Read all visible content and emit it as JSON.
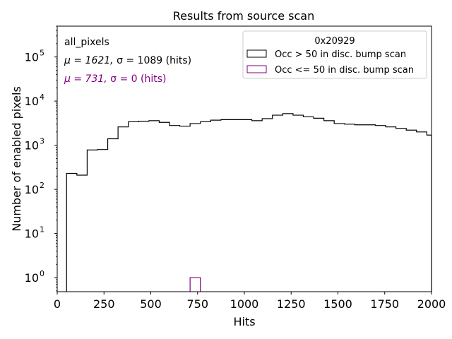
{
  "chart_data": {
    "type": "histogram",
    "title": "Results from source scan",
    "xlabel": "Hits",
    "ylabel": "Number of enabled pixels",
    "xlim": [
      0,
      2000
    ],
    "ylim": [
      0.48,
      500000
    ],
    "yscale": "log",
    "grid": false,
    "legend_placement": "top-right",
    "x_ticks": [
      0,
      250,
      500,
      750,
      1000,
      1250,
      1500,
      1750,
      2000
    ],
    "x_tick_labels": [
      "0",
      "250",
      "500",
      "750",
      "1000",
      "1250",
      "1500",
      "1750",
      "2000"
    ],
    "y_ticks": [
      1,
      10,
      100,
      1000,
      10000,
      100000
    ],
    "y_tick_labels": [
      {
        "base": "10",
        "exp": "0"
      },
      {
        "base": "10",
        "exp": "1"
      },
      {
        "base": "10",
        "exp": "2"
      },
      {
        "base": "10",
        "exp": "3"
      },
      {
        "base": "10",
        "exp": "4"
      },
      {
        "base": "10",
        "exp": "5"
      }
    ],
    "annotations": {
      "label": "all_pixels",
      "stats": [
        {
          "text_mu": "μ = 1621, ",
          "text_sigma": "σ = 1089 (hits)",
          "color": "#000000"
        },
        {
          "text_mu": "μ = 731, ",
          "text_sigma": "σ = 0 (hits)",
          "color": "#800080"
        }
      ]
    },
    "legend": {
      "title": "0x20929",
      "entries": [
        {
          "label": "Occ > 50 in disc. bump scan",
          "color": "#000000"
        },
        {
          "label": "Occ <= 50 in disc. bump scan",
          "color": "#800080"
        }
      ]
    },
    "series": [
      {
        "name": "Occ > 50 in disc. bump scan",
        "color": "#000000",
        "bin_edges": [
          50,
          105,
          160,
          215,
          270,
          325,
          380,
          435,
          490,
          545,
          600,
          655,
          710,
          765,
          820,
          875,
          930,
          985,
          1040,
          1095,
          1150,
          1205,
          1260,
          1315,
          1370,
          1425,
          1480,
          1535,
          1590,
          1645,
          1700,
          1755,
          1810,
          1865,
          1920,
          1975
        ],
        "values": [
          230,
          210,
          780,
          800,
          1400,
          2600,
          3400,
          3500,
          3600,
          3300,
          2800,
          2700,
          3100,
          3400,
          3700,
          3800,
          3800,
          3800,
          3600,
          4000,
          4800,
          5200,
          4800,
          4400,
          4100,
          3600,
          3100,
          3000,
          2900,
          2900,
          2800,
          2600,
          2400,
          2200,
          2000,
          1700
        ],
        "x_end": 2000
      },
      {
        "name": "Occ <= 50 in disc. bump scan",
        "color": "#800080",
        "bin_edges": [
          710
        ],
        "values": [
          1
        ],
        "x_end": 765
      }
    ]
  }
}
